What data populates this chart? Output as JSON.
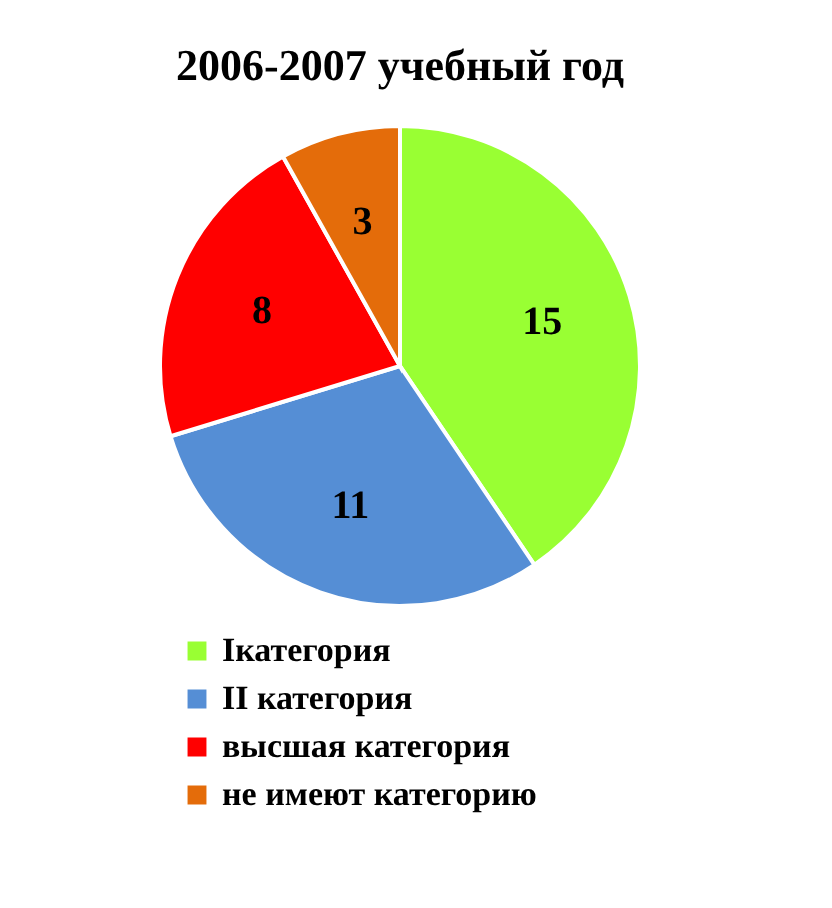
{
  "chart_data": {
    "type": "pie",
    "title": "2006-2007 учебный год",
    "categories": [
      "Iкатегория",
      "II категория",
      "высшая категория",
      "не имеют категорию"
    ],
    "values": [
      15,
      11,
      8,
      3
    ],
    "colors": [
      "#99ff33",
      "#558ed5",
      "#ff0000",
      "#e46c0a"
    ],
    "data_labels": true,
    "legend": "bottom"
  }
}
